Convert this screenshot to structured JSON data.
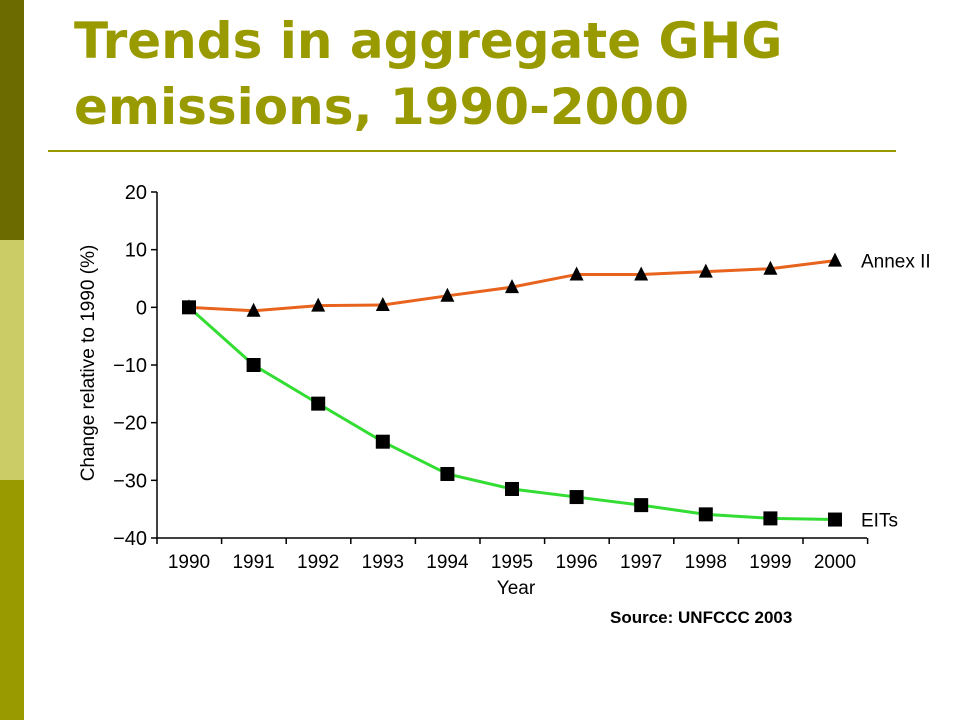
{
  "title": "Trends in aggregate GHG emissions, 1990-2000",
  "source": "Source: UNFCCC 2003",
  "colors": {
    "accent": "#999900",
    "sidebar_dark": "#6b6b00",
    "sidebar_light": "#cccc66",
    "annex_line": "#e8641e",
    "eit_line": "#33dd33"
  },
  "chart_data": {
    "type": "line",
    "x": [
      "1990",
      "1991",
      "1992",
      "1993",
      "1994",
      "1995",
      "1996",
      "1997",
      "1998",
      "1999",
      "2000"
    ],
    "xlabel": "Year",
    "ylabel": "Change relative to 1990 (%)",
    "ylim": [
      -40,
      20
    ],
    "yticks": [
      20,
      10,
      0,
      -10,
      -20,
      -30,
      -40
    ],
    "ytick_labels": [
      "20",
      "10",
      "0",
      "−10",
      "−20",
      "−30",
      "−40"
    ],
    "grid": false,
    "series": [
      {
        "name": "Annex II",
        "marker": "triangle",
        "color": "#e8641e",
        "values": [
          0,
          -0.6,
          0.3,
          0.4,
          2,
          3.5,
          5.7,
          5.7,
          6.2,
          6.7,
          8.1
        ]
      },
      {
        "name": "EITs",
        "marker": "square",
        "color": "#33dd33",
        "values": [
          0,
          -10,
          -16.7,
          -23.3,
          -28.9,
          -31.5,
          -32.9,
          -34.3,
          -35.9,
          -36.6,
          -36.8
        ]
      }
    ]
  }
}
